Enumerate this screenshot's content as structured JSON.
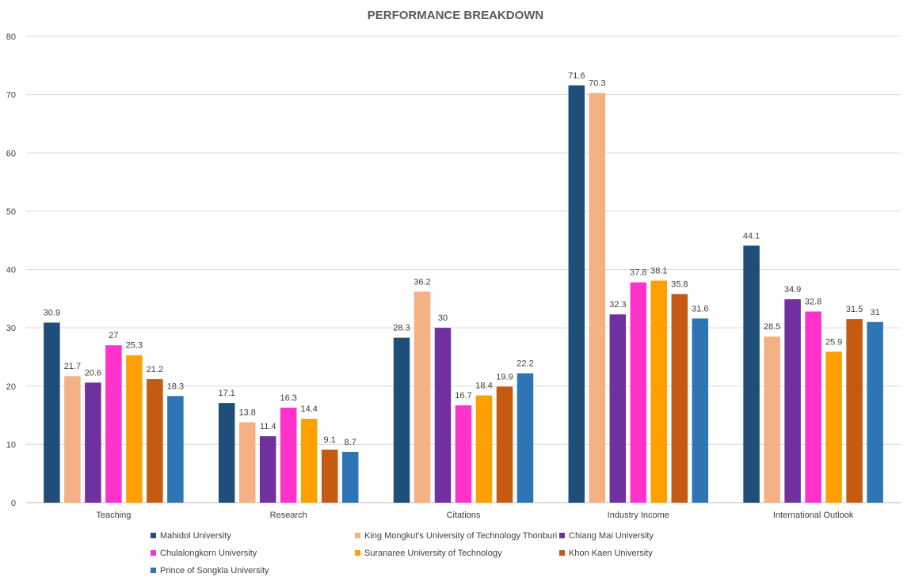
{
  "chart_data": {
    "type": "bar",
    "title": "PERFORMANCE BREAKDOWN",
    "categories": [
      "Teaching",
      "Research",
      "Citations",
      "Industry Income",
      "International Outlook"
    ],
    "ylim": [
      0,
      80
    ],
    "yticks": [
      0,
      10,
      20,
      30,
      40,
      50,
      60,
      70,
      80
    ],
    "grid": true,
    "legend_position": "bottom",
    "series": [
      {
        "name": "Mahidol University",
        "color": "#1f4e79",
        "values": [
          30.9,
          17.1,
          28.3,
          71.6,
          44.1
        ]
      },
      {
        "name": "King Mongkut's University of Technology Thonburi",
        "color": "#f4b183",
        "values": [
          21.7,
          13.8,
          36.2,
          70.3,
          28.5
        ]
      },
      {
        "name": "Chiang Mai University",
        "color": "#7030a0",
        "values": [
          20.6,
          11.4,
          30,
          32.3,
          34.9
        ]
      },
      {
        "name": "Chulalongkorn University",
        "color": "#ff33cc",
        "values": [
          27,
          16.3,
          16.7,
          37.8,
          32.8
        ]
      },
      {
        "name": "Suranaree University of Technology",
        "color": "#ffa000",
        "values": [
          25.3,
          14.4,
          18.4,
          38.1,
          25.9
        ]
      },
      {
        "name": "Khon Kaen University",
        "color": "#c55a11",
        "values": [
          21.2,
          9.1,
          19.9,
          35.8,
          31.5
        ]
      },
      {
        "name": "Prince of Songkla University",
        "color": "#2e75b6",
        "values": [
          18.3,
          8.7,
          22.2,
          31.6,
          31
        ]
      }
    ]
  }
}
